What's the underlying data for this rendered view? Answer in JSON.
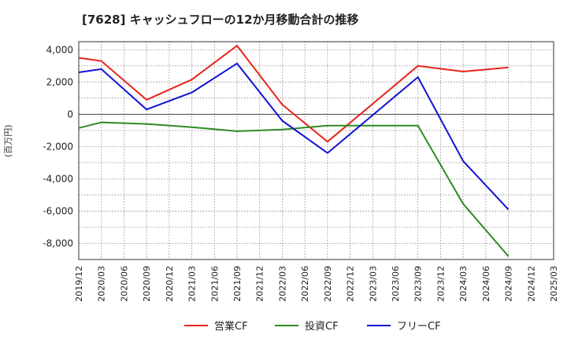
{
  "chart_data": {
    "type": "line",
    "title": "[7628]  キャッシュフローの12か月移動合計の推移",
    "xlabel": "",
    "ylabel": "(百万円)",
    "ylim": [
      -9000,
      4500
    ],
    "yticks": [
      4000,
      2000,
      0,
      -2000,
      -4000,
      -6000,
      -8000
    ],
    "ytick_labels": [
      "4,000",
      "2,000",
      "0",
      "-2,000",
      "-4,000",
      "-6,000",
      "-8,000"
    ],
    "x_ticks": [
      "2019/12",
      "2020/03",
      "2020/06",
      "2020/09",
      "2020/12",
      "2021/03",
      "2021/06",
      "2021/09",
      "2021/12",
      "2022/03",
      "2022/06",
      "2022/09",
      "2022/12",
      "2023/03",
      "2023/06",
      "2023/09",
      "2023/12",
      "2024/03",
      "2024/06",
      "2024/09",
      "2024/12",
      "2025/03"
    ],
    "grid": true,
    "legend_position": "bottom",
    "series": [
      {
        "name": "営業CF",
        "color": "#e8251d",
        "points": [
          [
            "2019/12",
            3500
          ],
          [
            "2020/03",
            3300
          ],
          [
            "2020/09",
            900
          ],
          [
            "2021/03",
            2150
          ],
          [
            "2021/09",
            4250
          ],
          [
            "2022/03",
            600
          ],
          [
            "2022/09",
            -1700
          ],
          [
            "2023/09",
            3000
          ],
          [
            "2024/03",
            2650
          ],
          [
            "2024/09",
            2900
          ]
        ]
      },
      {
        "name": "投資CF",
        "color": "#2e8b23",
        "points": [
          [
            "2019/12",
            -850
          ],
          [
            "2020/03",
            -500
          ],
          [
            "2020/09",
            -600
          ],
          [
            "2021/03",
            -800
          ],
          [
            "2021/09",
            -1050
          ],
          [
            "2022/03",
            -950
          ],
          [
            "2022/09",
            -700
          ],
          [
            "2023/09",
            -700
          ],
          [
            "2024/03",
            -5550
          ],
          [
            "2024/09",
            -8800
          ]
        ]
      },
      {
        "name": "フリーCF",
        "color": "#1212d4",
        "points": [
          [
            "2019/12",
            2600
          ],
          [
            "2020/03",
            2800
          ],
          [
            "2020/09",
            300
          ],
          [
            "2021/03",
            1350
          ],
          [
            "2021/09",
            3150
          ],
          [
            "2022/03",
            -400
          ],
          [
            "2022/09",
            -2400
          ],
          [
            "2023/09",
            2300
          ],
          [
            "2024/03",
            -2900
          ],
          [
            "2024/09",
            -5900
          ]
        ]
      }
    ]
  }
}
